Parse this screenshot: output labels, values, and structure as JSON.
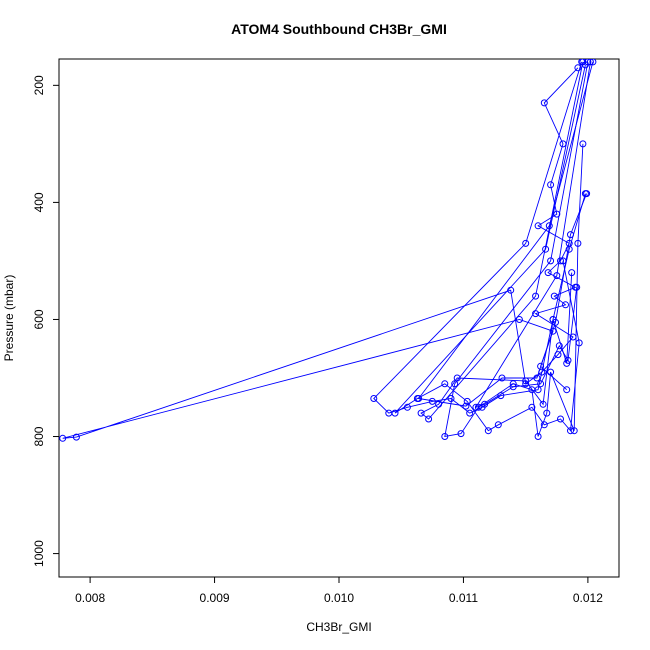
{
  "chart_data": {
    "type": "line",
    "title": "ATOM4 Southbound CH3Br_GMI",
    "xlabel": "CH3Br_GMI",
    "ylabel": "Pressure (mbar)",
    "xlim": [
      0.00775,
      0.01225
    ],
    "ylim": [
      1040,
      155
    ],
    "y_reversed": true,
    "x_ticks": [
      0.008,
      0.009,
      0.01,
      0.011,
      0.012
    ],
    "x_tick_labels": [
      "0.008",
      "0.009",
      "0.010",
      "0.011",
      "0.012"
    ],
    "y_ticks": [
      200,
      400,
      600,
      800,
      1000
    ],
    "y_tick_labels": [
      "200",
      "400",
      "600",
      "800",
      "1000"
    ],
    "grid": false,
    "legend": "none",
    "series_color": "#0000ff",
    "markers": "open-circle",
    "series": [
      {
        "x": [
          0.01192,
          0.01165,
          0.0118,
          0.0117,
          0.01175,
          0.0116,
          0.01185,
          0.01178,
          0.01168,
          0.0119,
          0.01173,
          0.01182,
          0.01158,
          0.01188,
          0.01176,
          0.01163,
          0.0115,
          0.01138,
          0.00789,
          0.00778,
          0.01145,
          0.01172,
          0.01162,
          0.01183
        ],
        "y": [
          170,
          230,
          300,
          370,
          420,
          440,
          470,
          500,
          520,
          545,
          560,
          575,
          590,
          630,
          660,
          690,
          710,
          550,
          801,
          803,
          600,
          620,
          680,
          720
        ]
      },
      {
        "x": [
          0.01195,
          0.0115,
          0.01028,
          0.0104,
          0.01055,
          0.01075,
          0.0109,
          0.01105,
          0.01115,
          0.0113,
          0.0116,
          0.01172,
          0.01185,
          0.01198
        ],
        "y": [
          160,
          470,
          735,
          760,
          750,
          740,
          735,
          760,
          750,
          730,
          720,
          600,
          480,
          385
        ]
      },
      {
        "x": [
          0.01198,
          0.01166,
          0.01045,
          0.01063,
          0.01085,
          0.01103,
          0.0112,
          0.01128,
          0.01155,
          0.01165,
          0.01178,
          0.01186,
          0.01193,
          0.0118
        ],
        "y": [
          165,
          480,
          760,
          735,
          710,
          740,
          790,
          780,
          750,
          780,
          770,
          790,
          640,
          500
        ]
      },
      {
        "x": [
          0.012,
          0.0117,
          0.01093,
          0.01085,
          0.01098,
          0.01112,
          0.0114,
          0.01155,
          0.0116,
          0.01167,
          0.0117,
          0.01189,
          0.01192,
          0.01196
        ],
        "y": [
          160,
          500,
          710,
          800,
          795,
          750,
          710,
          720,
          800,
          760,
          690,
          790,
          470,
          300
        ]
      },
      {
        "x": [
          0.01196,
          0.01158,
          0.01072,
          0.01066,
          0.0108,
          0.01095,
          0.0115,
          0.01164,
          0.01172,
          0.01183,
          0.01187
        ],
        "y": [
          160,
          560,
          770,
          760,
          745,
          700,
          705,
          745,
          600,
          675,
          520
        ]
      },
      {
        "x": [
          0.01202,
          0.01175,
          0.0111,
          0.01117,
          0.0114,
          0.01162,
          0.01177,
          0.01184,
          0.01191
        ],
        "y": [
          160,
          525,
          750,
          745,
          715,
          710,
          645,
          670,
          545
        ]
      },
      {
        "x": [
          0.01204,
          0.01169,
          0.01064,
          0.01102,
          0.01131,
          0.01159,
          0.01174,
          0.01186,
          0.01199
        ],
        "y": [
          160,
          440,
          735,
          748,
          700,
          700,
          605,
          455,
          385
        ]
      }
    ]
  }
}
